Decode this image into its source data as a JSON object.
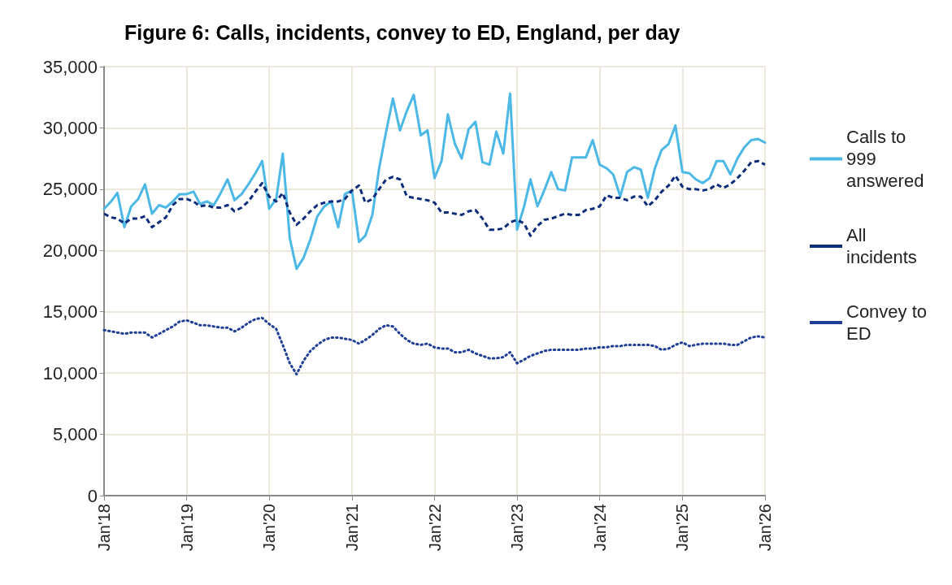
{
  "chart_data": {
    "type": "line",
    "title": "Figure 6: Calls, incidents, convey to ED, England, per day",
    "x": [
      "2018-01",
      "2018-02",
      "2018-03",
      "2018-04",
      "2018-05",
      "2018-06",
      "2018-07",
      "2018-08",
      "2018-09",
      "2018-10",
      "2018-11",
      "2018-12",
      "2019-01",
      "2019-02",
      "2019-03",
      "2019-04",
      "2019-05",
      "2019-06",
      "2019-07",
      "2019-08",
      "2019-09",
      "2019-10",
      "2019-11",
      "2019-12",
      "2020-01",
      "2020-02",
      "2020-03",
      "2020-04",
      "2020-05",
      "2020-06",
      "2020-07",
      "2020-08",
      "2020-09",
      "2020-10",
      "2020-11",
      "2020-12",
      "2021-01",
      "2021-02",
      "2021-03",
      "2021-04",
      "2021-05",
      "2021-06",
      "2021-07",
      "2021-08",
      "2021-09",
      "2021-10",
      "2021-11",
      "2021-12",
      "2022-01",
      "2022-02",
      "2022-03",
      "2022-04",
      "2022-05",
      "2022-06",
      "2022-07",
      "2022-08",
      "2022-09",
      "2022-10",
      "2022-11",
      "2022-12",
      "2023-01",
      "2023-02",
      "2023-03",
      "2023-04",
      "2023-05",
      "2023-06",
      "2023-07",
      "2023-08",
      "2023-09",
      "2023-10",
      "2023-11",
      "2023-12",
      "2024-01",
      "2024-02",
      "2024-03",
      "2024-04",
      "2024-05",
      "2024-06",
      "2024-07",
      "2024-08",
      "2024-09",
      "2024-10",
      "2024-11",
      "2024-12",
      "2025-01",
      "2025-02",
      "2025-03",
      "2025-04",
      "2025-05",
      "2025-06",
      "2025-07",
      "2025-08",
      "2025-09",
      "2025-10",
      "2025-11",
      "2025-12",
      "2026-01"
    ],
    "series": [
      {
        "name": "Calls to 999 answered",
        "color": "#4bb8e6",
        "line_style": "solid",
        "values": [
          23400,
          24000,
          24700,
          21900,
          23600,
          24200,
          25400,
          23000,
          23700,
          23500,
          24000,
          24600,
          24600,
          24800,
          23800,
          24000,
          23700,
          24700,
          25800,
          24100,
          24600,
          25400,
          26300,
          27300,
          23400,
          24200,
          27900,
          21000,
          18500,
          19400,
          20900,
          22800,
          23600,
          24000,
          21900,
          24600,
          24900,
          20700,
          21200,
          22900,
          26700,
          29700,
          32400,
          29800,
          31400,
          32700,
          29400,
          29800,
          25900,
          27300,
          31100,
          28700,
          27500,
          29900,
          30500,
          27200,
          27000,
          29700,
          27900,
          32800,
          21700,
          23600,
          25800,
          23600,
          24900,
          26400,
          25000,
          24900,
          27600,
          27600,
          27600,
          29000,
          27000,
          26700,
          26200,
          24400,
          26400,
          26800,
          26600,
          24300,
          26700,
          28200,
          28700,
          30200,
          26400,
          26300,
          25800,
          25500,
          25900,
          27300,
          27300,
          26200,
          27500,
          28400,
          29000,
          29100,
          28800
        ]
      },
      {
        "name": "All incidents",
        "color": "#0b2d7c",
        "line_style": "dashed",
        "values": [
          23000,
          22700,
          22600,
          22200,
          22600,
          22600,
          22800,
          21900,
          22300,
          22700,
          23700,
          24200,
          24200,
          24000,
          23600,
          23700,
          23500,
          23500,
          23700,
          23200,
          23500,
          24000,
          24800,
          25500,
          24400,
          24000,
          24700,
          23100,
          22100,
          22600,
          23200,
          23700,
          23900,
          24000,
          24000,
          24200,
          24900,
          25300,
          23900,
          24200,
          25000,
          25800,
          26000,
          25800,
          24400,
          24300,
          24200,
          24100,
          23900,
          23100,
          23100,
          23000,
          22900,
          23200,
          23300,
          22600,
          21700,
          21700,
          21800,
          22300,
          22500,
          22200,
          21200,
          22000,
          22500,
          22600,
          22800,
          23000,
          22900,
          22900,
          23300,
          23400,
          23600,
          24500,
          24300,
          24300,
          24100,
          24400,
          24400,
          23600,
          24100,
          24800,
          25300,
          26100,
          25200,
          25000,
          25000,
          24900,
          25000,
          25400,
          25100,
          25400,
          25900,
          26500,
          27200,
          27300,
          27000
        ]
      },
      {
        "name": "Convey to ED",
        "color": "#1e3f95",
        "line_style": "dotted",
        "values": [
          13500,
          13400,
          13300,
          13200,
          13300,
          13300,
          13300,
          12900,
          13200,
          13500,
          13800,
          14200,
          14300,
          14100,
          13900,
          13900,
          13800,
          13700,
          13700,
          13400,
          13700,
          14100,
          14400,
          14500,
          14000,
          13600,
          12300,
          10800,
          9900,
          11000,
          11800,
          12300,
          12700,
          12900,
          12900,
          12800,
          12700,
          12400,
          12700,
          13100,
          13600,
          13900,
          13800,
          13200,
          12700,
          12400,
          12300,
          12400,
          12100,
          12000,
          12000,
          11700,
          11700,
          11900,
          11600,
          11400,
          11200,
          11200,
          11300,
          11700,
          10800,
          11100,
          11400,
          11600,
          11800,
          11900,
          11900,
          11900,
          11900,
          11900,
          12000,
          12000,
          12100,
          12100,
          12200,
          12200,
          12300,
          12300,
          12300,
          12300,
          12200,
          11900,
          12000,
          12300,
          12500,
          12200,
          12300,
          12400,
          12400,
          12400,
          12400,
          12300,
          12300,
          12600,
          12900,
          13000,
          12900
        ]
      }
    ],
    "xlim": [
      "2018-01",
      "2026-01"
    ],
    "xticks": [
      {
        "value": "2018-01",
        "label": "Jan'18"
      },
      {
        "value": "2019-01",
        "label": "Jan'19"
      },
      {
        "value": "2020-01",
        "label": "Jan'20"
      },
      {
        "value": "2021-01",
        "label": "Jan'21"
      },
      {
        "value": "2022-01",
        "label": "Jan'22"
      },
      {
        "value": "2023-01",
        "label": "Jan'23"
      },
      {
        "value": "2024-01",
        "label": "Jan'24"
      },
      {
        "value": "2025-01",
        "label": "Jan'25"
      },
      {
        "value": "2026-01",
        "label": "Jan'26"
      }
    ],
    "ylim": [
      0,
      35000
    ],
    "yticks": [
      0,
      {
        "value": 5000,
        "label": "5,000"
      },
      {
        "value": 10000,
        "label": "10,000"
      },
      {
        "value": 15000,
        "label": "15,000"
      },
      {
        "value": 20000,
        "label": "20,000"
      },
      {
        "value": 25000,
        "label": "25,000"
      },
      {
        "value": 30000,
        "label": "30,000"
      },
      {
        "value": 35000,
        "label": "35,000"
      }
    ],
    "grid": true,
    "legend": "right",
    "marker": "none"
  }
}
